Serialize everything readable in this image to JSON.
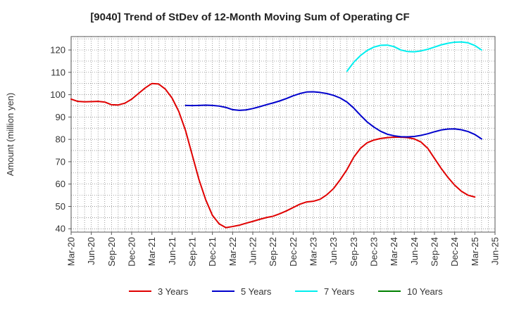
{
  "chart_data": {
    "type": "line",
    "title": "[9040]  Trend of StDev of 12-Month Moving Sum of Operating CF",
    "ylabel": "Amount (million yen)",
    "ylim": [
      38.5,
      126
    ],
    "yticks": [
      40,
      50,
      60,
      70,
      80,
      90,
      100,
      110,
      120
    ],
    "xlim": [
      "Mar-20",
      "Jun-25"
    ],
    "xticks": [
      "Mar-20",
      "Jun-20",
      "Sep-20",
      "Dec-20",
      "Mar-21",
      "Jun-21",
      "Sep-21",
      "Dec-21",
      "Mar-22",
      "Jun-22",
      "Sep-22",
      "Dec-22",
      "Mar-23",
      "Jun-23",
      "Sep-23",
      "Dec-23",
      "Mar-24",
      "Jun-24",
      "Sep-24",
      "Dec-24",
      "Mar-25",
      "Jun-25"
    ],
    "grid": true,
    "legend_position": "bottom",
    "series": [
      {
        "name": "3 Years",
        "color": "#e00000",
        "points": [
          [
            "Mar-20",
            98
          ],
          [
            "Apr-20",
            97
          ],
          [
            "May-20",
            96.8
          ],
          [
            "Jun-20",
            96.9
          ],
          [
            "Jul-20",
            97
          ],
          [
            "Aug-20",
            96.7
          ],
          [
            "Sep-20",
            95.5
          ],
          [
            "Oct-20",
            95.4
          ],
          [
            "Nov-20",
            96.2
          ],
          [
            "Dec-20",
            98
          ],
          [
            "Jan-21",
            100.5
          ],
          [
            "Feb-21",
            103
          ],
          [
            "Mar-21",
            105
          ],
          [
            "Apr-21",
            104.8
          ],
          [
            "May-21",
            102.5
          ],
          [
            "Jun-21",
            98.5
          ],
          [
            "Jul-21",
            92.5
          ],
          [
            "Aug-21",
            84
          ],
          [
            "Sep-21",
            73
          ],
          [
            "Oct-21",
            62
          ],
          [
            "Nov-21",
            53
          ],
          [
            "Dec-21",
            46
          ],
          [
            "Jan-22",
            42.2
          ],
          [
            "Feb-22",
            40.5
          ],
          [
            "Mar-22",
            41
          ],
          [
            "Apr-22",
            41.6
          ],
          [
            "May-22",
            42.5
          ],
          [
            "Jun-22",
            43.3
          ],
          [
            "Jul-22",
            44.2
          ],
          [
            "Aug-22",
            45
          ],
          [
            "Sep-22",
            45.6
          ],
          [
            "Oct-22",
            46.7
          ],
          [
            "Nov-22",
            48
          ],
          [
            "Dec-22",
            49.5
          ],
          [
            "Jan-23",
            51
          ],
          [
            "Feb-23",
            52
          ],
          [
            "Mar-23",
            52.3
          ],
          [
            "Apr-23",
            53.2
          ],
          [
            "May-23",
            55.2
          ],
          [
            "Jun-23",
            58
          ],
          [
            "Jul-23",
            62
          ],
          [
            "Aug-23",
            66.5
          ],
          [
            "Sep-23",
            72
          ],
          [
            "Oct-23",
            76
          ],
          [
            "Nov-23",
            78.5
          ],
          [
            "Dec-23",
            79.7
          ],
          [
            "Jan-24",
            80.4
          ],
          [
            "Feb-24",
            80.8
          ],
          [
            "Mar-24",
            81
          ],
          [
            "Apr-24",
            81
          ],
          [
            "May-24",
            80.8
          ],
          [
            "Jun-24",
            80.2
          ],
          [
            "Jul-24",
            78.8
          ],
          [
            "Aug-24",
            76
          ],
          [
            "Sep-24",
            71.5
          ],
          [
            "Oct-24",
            67
          ],
          [
            "Nov-24",
            63
          ],
          [
            "Dec-24",
            59.5
          ],
          [
            "Jan-25",
            56.8
          ],
          [
            "Feb-25",
            55
          ],
          [
            "Mar-25",
            54.2
          ]
        ]
      },
      {
        "name": "5 Years",
        "color": "#0000cc",
        "points": [
          [
            "Aug-21",
            95.2
          ],
          [
            "Sep-21",
            95.1
          ],
          [
            "Oct-21",
            95.2
          ],
          [
            "Nov-21",
            95.3
          ],
          [
            "Dec-21",
            95.2
          ],
          [
            "Jan-22",
            94.9
          ],
          [
            "Feb-22",
            94.3
          ],
          [
            "Mar-22",
            93.3
          ],
          [
            "Apr-22",
            93
          ],
          [
            "May-22",
            93.2
          ],
          [
            "Jun-22",
            93.8
          ],
          [
            "Jul-22",
            94.6
          ],
          [
            "Aug-22",
            95.5
          ],
          [
            "Sep-22",
            96.3
          ],
          [
            "Oct-22",
            97.2
          ],
          [
            "Nov-22",
            98.3
          ],
          [
            "Dec-22",
            99.5
          ],
          [
            "Jan-23",
            100.5
          ],
          [
            "Feb-23",
            101.2
          ],
          [
            "Mar-23",
            101.3
          ],
          [
            "Apr-23",
            101
          ],
          [
            "May-23",
            100.5
          ],
          [
            "Jun-23",
            99.7
          ],
          [
            "Jul-23",
            98.5
          ],
          [
            "Aug-23",
            96.7
          ],
          [
            "Sep-23",
            94
          ],
          [
            "Oct-23",
            90.8
          ],
          [
            "Nov-23",
            87.8
          ],
          [
            "Dec-23",
            85.5
          ],
          [
            "Jan-24",
            83.6
          ],
          [
            "Feb-24",
            82.3
          ],
          [
            "Mar-24",
            81.6
          ],
          [
            "Apr-24",
            81.2
          ],
          [
            "May-24",
            81.1
          ],
          [
            "Jun-24",
            81.3
          ],
          [
            "Jul-24",
            81.8
          ],
          [
            "Aug-24",
            82.5
          ],
          [
            "Sep-24",
            83.4
          ],
          [
            "Oct-24",
            84.2
          ],
          [
            "Nov-24",
            84.6
          ],
          [
            "Dec-24",
            84.7
          ],
          [
            "Jan-25",
            84.3
          ],
          [
            "Feb-25",
            83.5
          ],
          [
            "Mar-25",
            82.2
          ],
          [
            "Apr-25",
            80.2
          ]
        ]
      },
      {
        "name": "7 Years",
        "color": "#00eeee",
        "points": [
          [
            "Aug-23",
            110.5
          ],
          [
            "Sep-23",
            114.5
          ],
          [
            "Oct-23",
            117.5
          ],
          [
            "Nov-23",
            119.8
          ],
          [
            "Dec-23",
            121.3
          ],
          [
            "Jan-24",
            122.1
          ],
          [
            "Feb-24",
            122.2
          ],
          [
            "Mar-24",
            121.5
          ],
          [
            "Apr-24",
            120
          ],
          [
            "May-24",
            119.3
          ],
          [
            "Jun-24",
            119.2
          ],
          [
            "Jul-24",
            119.6
          ],
          [
            "Aug-24",
            120.3
          ],
          [
            "Sep-24",
            121.3
          ],
          [
            "Oct-24",
            122.3
          ],
          [
            "Nov-24",
            123
          ],
          [
            "Dec-24",
            123.5
          ],
          [
            "Jan-25",
            123.6
          ],
          [
            "Feb-25",
            123.2
          ],
          [
            "Mar-25",
            122
          ],
          [
            "Apr-25",
            120
          ]
        ]
      },
      {
        "name": "10 Years",
        "color": "#008000",
        "points": []
      }
    ]
  }
}
